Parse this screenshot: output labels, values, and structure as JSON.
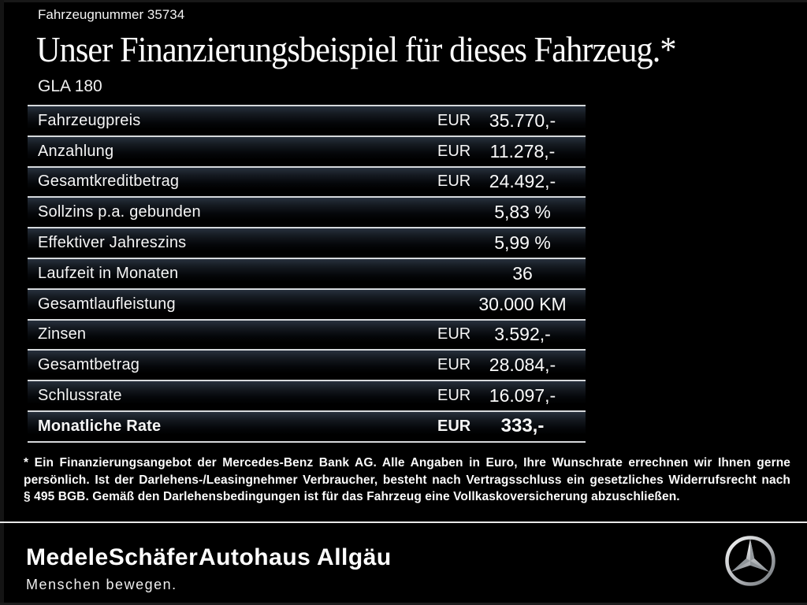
{
  "header": {
    "vehicle_number": "Fahrzeugnummer 35734",
    "title": "Unser Finanzierungsbeispiel für dieses Fahrzeug.*",
    "model": "GLA 180"
  },
  "financing_table": {
    "rows": [
      {
        "label": "Fahrzeugpreis",
        "currency": "EUR",
        "value": "35.770,-",
        "emphasis": false
      },
      {
        "label": "Anzahlung",
        "currency": "EUR",
        "value": "11.278,-",
        "emphasis": false
      },
      {
        "label": "Gesamtkreditbetrag",
        "currency": "EUR",
        "value": "24.492,-",
        "emphasis": false
      },
      {
        "label": "Sollzins p.a. gebunden",
        "currency": "",
        "value": "5,83 %",
        "emphasis": false
      },
      {
        "label": "Effektiver Jahreszins",
        "currency": "",
        "value": "5,99 %",
        "emphasis": false
      },
      {
        "label": "Laufzeit in Monaten",
        "currency": "",
        "value": "36",
        "emphasis": false
      },
      {
        "label": "Gesamtlaufleistung",
        "currency": "",
        "value": "30.000 KM",
        "emphasis": false
      },
      {
        "label": "Zinsen",
        "currency": "EUR",
        "value": "3.592,-",
        "emphasis": false
      },
      {
        "label": "Gesamtbetrag",
        "currency": "EUR",
        "value": "28.084,-",
        "emphasis": false
      },
      {
        "label": "Schlussrate",
        "currency": "EUR",
        "value": "16.097,-",
        "emphasis": false
      },
      {
        "label": "Monatliche Rate",
        "currency": "EUR",
        "value": "333,-",
        "emphasis": true
      }
    ]
  },
  "disclaimer": {
    "lines": [
      "* Ein Finanzierungsangebot der Mercedes-Benz Bank AG. Alle Angaben in Euro, Ihre Wunschrate errechnen wir Ihnen gerne",
      "persönlich. Ist der Darlehens-/Leasingnehmer Verbraucher, besteht nach Vertragsschluss ein gesetzliches Widerrufsrecht nach",
      "§ 495 BGB. Gemäß den Darlehensbedingungen ist für das Fahrzeug eine Vollkaskoversicherung abzuschließen."
    ]
  },
  "footer": {
    "dealer_primary": "MedeleSchäfer",
    "dealer_primary_tagline": "Menschen bewegen.",
    "dealer_secondary": "Autohaus Allgäu",
    "brand_icon": "mercedes-benz-star-icon"
  },
  "colors": {
    "background": "#000000",
    "text": "#ffffff",
    "table_separator": "#d6d9dc",
    "row_gradient_top": "#27303c",
    "star_silver": "#c6c9cd"
  }
}
